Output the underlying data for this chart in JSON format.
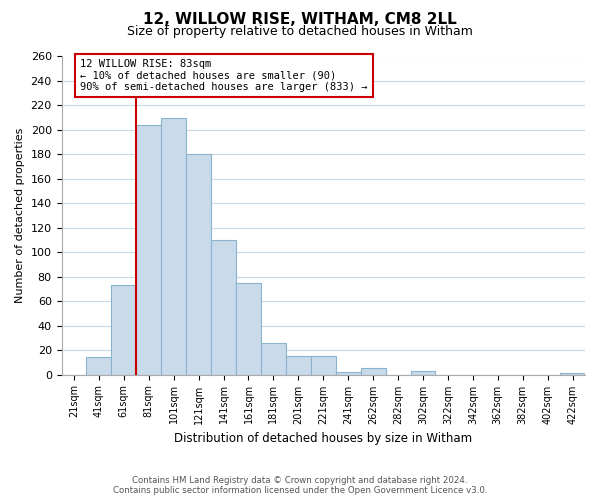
{
  "title": "12, WILLOW RISE, WITHAM, CM8 2LL",
  "subtitle": "Size of property relative to detached houses in Witham",
  "xlabel": "Distribution of detached houses by size in Witham",
  "ylabel": "Number of detached properties",
  "bins": [
    "21sqm",
    "41sqm",
    "61sqm",
    "81sqm",
    "101sqm",
    "121sqm",
    "141sqm",
    "161sqm",
    "181sqm",
    "201sqm",
    "221sqm",
    "241sqm",
    "262sqm",
    "282sqm",
    "302sqm",
    "322sqm",
    "342sqm",
    "362sqm",
    "382sqm",
    "402sqm",
    "422sqm"
  ],
  "values": [
    0,
    14,
    73,
    204,
    210,
    180,
    110,
    75,
    26,
    15,
    15,
    2,
    5,
    0,
    3,
    0,
    0,
    0,
    0,
    0,
    1
  ],
  "bar_color": "#c9daea",
  "bar_edge_color": "#8ab4cc",
  "vline_color": "#cc0000",
  "annotation_title": "12 WILLOW RISE: 83sqm",
  "annotation_line1": "← 10% of detached houses are smaller (90)",
  "annotation_line2": "90% of semi-detached houses are larger (833) →",
  "annotation_box_edge": "#cc0000",
  "ylim": [
    0,
    260
  ],
  "yticks": [
    0,
    20,
    40,
    60,
    80,
    100,
    120,
    140,
    160,
    180,
    200,
    220,
    240,
    260
  ],
  "footer_line1": "Contains HM Land Registry data © Crown copyright and database right 2024.",
  "footer_line2": "Contains public sector information licensed under the Open Government Licence v3.0.",
  "bg_color": "#ffffff",
  "grid_color": "#c8d8e8"
}
